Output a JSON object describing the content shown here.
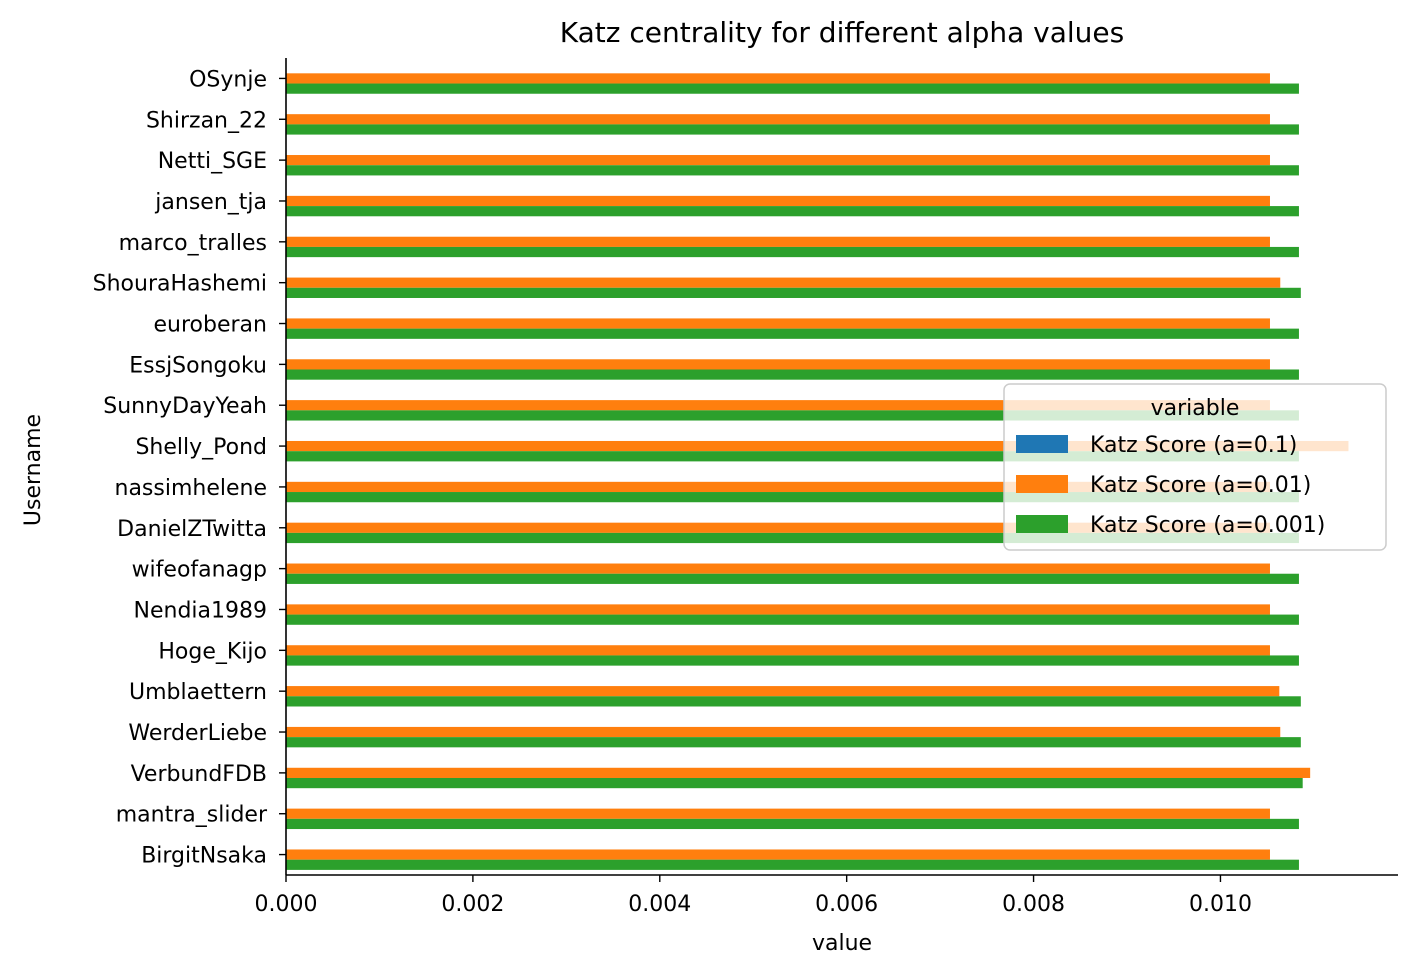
{
  "chart_data": {
    "type": "bar",
    "orientation": "horizontal",
    "title": "Katz centrality for different alpha values",
    "xlabel": "value",
    "ylabel": "Username",
    "xlim": [
      0,
      0.0119
    ],
    "xticks": [
      "0.000",
      "0.002",
      "0.004",
      "0.006",
      "0.008",
      "0.010"
    ],
    "grid": false,
    "legend": {
      "title": "variable",
      "placement": "center-right"
    },
    "categories": [
      "OSynje",
      "Shirzan_22",
      "Netti_SGE",
      "jansen_tja",
      "marco_tralles",
      "ShouraHashemi",
      "euroberan",
      "EssjSongoku",
      "SunnyDayYeah",
      "Shelly_Pond",
      "nassimhelene",
      "DanielZTwitta",
      "wifeofanagp",
      "Nendia1989",
      "Hoge_Kijo",
      "Umblaettern",
      "WerderLiebe",
      "VerbundFDB",
      "mantra_slider",
      "BirgitNsaka"
    ],
    "series": [
      {
        "name": "Katz Score (a=0.1)",
        "color": "#1f77b4",
        "values": [
          0,
          0,
          0,
          0,
          0,
          0,
          0,
          0,
          0,
          0,
          0,
          0,
          0,
          0,
          0,
          0,
          0,
          0,
          0,
          0
        ]
      },
      {
        "name": "Katz Score (a=0.01)",
        "color": "#ff7f0e",
        "values": [
          0.01053,
          0.01053,
          0.01053,
          0.01053,
          0.01053,
          0.01064,
          0.01053,
          0.01053,
          0.01053,
          0.01137,
          0.01053,
          0.01053,
          0.01053,
          0.01053,
          0.01053,
          0.01063,
          0.01064,
          0.01096,
          0.01053,
          0.01053
        ]
      },
      {
        "name": "Katz Score (a=0.001)",
        "color": "#2ca02c",
        "values": [
          0.01084,
          0.01084,
          0.01084,
          0.01084,
          0.01084,
          0.01086,
          0.01084,
          0.01084,
          0.01084,
          0.01084,
          0.01084,
          0.01084,
          0.01084,
          0.01084,
          0.01084,
          0.01086,
          0.01086,
          0.01088,
          0.01084,
          0.01084
        ]
      }
    ]
  }
}
